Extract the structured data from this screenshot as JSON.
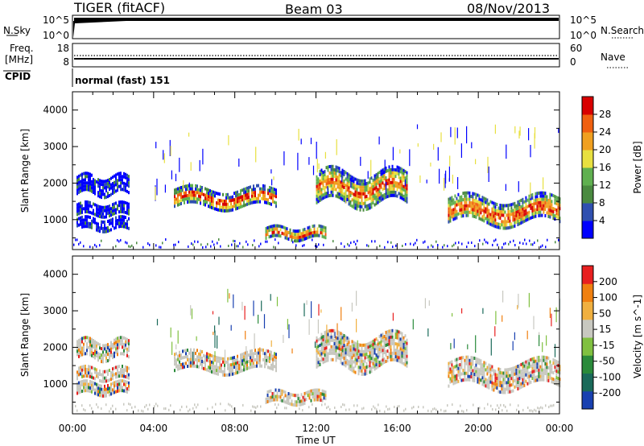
{
  "header": {
    "site": "TIGER (fitACF)",
    "beam": "Beam 03",
    "date": "08/Nov/2013"
  },
  "panels": {
    "nsky": {
      "label": "N.Sky",
      "ticks": [
        "10^5",
        "10^0"
      ],
      "right_label": "N.Search",
      "right_ticks": [
        "10^5",
        "10^0"
      ]
    },
    "freq": {
      "label_1": "Freq.",
      "label_2": "[MHz]",
      "ticks": [
        "18",
        "8"
      ],
      "right_label": "Nave",
      "right_ticks": [
        "60",
        "0"
      ]
    },
    "cpid": {
      "label": "CPID",
      "value": "normal (fast) 151"
    }
  },
  "chart_data": [
    {
      "type": "heatmap",
      "name": "power",
      "ylabel": "Slant Range [km]",
      "yticks": [
        "4000",
        "3000",
        "2000",
        "1000"
      ],
      "ylim": [
        180,
        4500
      ],
      "colorbar": {
        "title": "Power [dB]",
        "ticks": [
          "28",
          "24",
          "20",
          "16",
          "12",
          "8",
          "4"
        ],
        "colors": [
          "#0000ff",
          "#3050b0",
          "#4a8a40",
          "#60b050",
          "#e8e040",
          "#f0a020",
          "#f06010",
          "#d80000"
        ]
      },
      "echo_bands": [
        {
          "t": [
            0.2,
            2.8
          ],
          "range": [
            1750,
            2200
          ],
          "level": "low"
        },
        {
          "t": [
            0.2,
            2.8
          ],
          "range": [
            1150,
            1450
          ],
          "level": "low"
        },
        {
          "t": [
            0.2,
            2.8
          ],
          "range": [
            750,
            1050
          ],
          "level": "low"
        },
        {
          "t": [
            5.0,
            10.0
          ],
          "range": [
            1350,
            1850
          ],
          "level": "high"
        },
        {
          "t": [
            9.5,
            12.5
          ],
          "range": [
            500,
            800
          ],
          "level": "high"
        },
        {
          "t": [
            12.0,
            16.5
          ],
          "range": [
            1500,
            2300
          ],
          "level": "high"
        },
        {
          "t": [
            18.5,
            24.0
          ],
          "range": [
            900,
            1600
          ],
          "level": "high"
        }
      ]
    },
    {
      "type": "heatmap",
      "name": "velocity",
      "ylabel": "Slant Range [km]",
      "yticks": [
        "4000",
        "3000",
        "2000",
        "1000"
      ],
      "ylim": [
        180,
        4500
      ],
      "xlabel": "Time UT",
      "xticks": [
        "00:00",
        "04:00",
        "08:00",
        "12:00",
        "16:00",
        "20:00",
        "00:00"
      ],
      "colorbar": {
        "title": "Velocity [m s^-1]",
        "ticks": [
          "200",
          "100",
          "50",
          "15",
          "-15",
          "-50",
          "-100",
          "-200"
        ],
        "colors": [
          "#1840b0",
          "#1a6a5a",
          "#2a8a3a",
          "#80c040",
          "#c8c8c0",
          "#f0b040",
          "#f08010",
          "#e82020"
        ]
      }
    }
  ]
}
